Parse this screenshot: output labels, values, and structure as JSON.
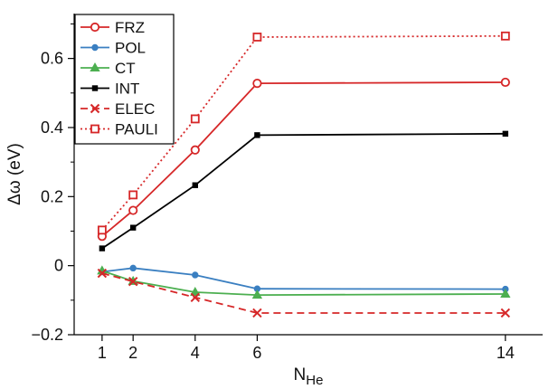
{
  "chart_data": {
    "type": "line",
    "title": "",
    "xlabel_main": "N",
    "xlabel_sub": "He",
    "ylabel": "Δω (eV)",
    "xlim": [
      0.1,
      15.2
    ],
    "ylim": [
      -0.2,
      0.73
    ],
    "xticks": [
      1,
      2,
      4,
      6,
      14
    ],
    "xtick_labels": [
      "1",
      "2",
      "4",
      "6",
      "14"
    ],
    "yticks": [
      -0.2,
      0,
      0.2,
      0.4,
      0.6
    ],
    "ytick_labels": [
      "−0.2",
      "0",
      "0.2",
      "0.4",
      "0.6"
    ],
    "x": [
      1,
      2,
      4,
      6,
      14
    ],
    "grid": false,
    "legend_position": "top-left",
    "series": [
      {
        "name": "FRZ",
        "values": [
          0.085,
          0.16,
          0.335,
          0.528,
          0.531
        ],
        "color": "#d62728",
        "marker": "open-circle",
        "line": "solid"
      },
      {
        "name": "POL",
        "values": [
          -0.018,
          -0.007,
          -0.027,
          -0.067,
          -0.068
        ],
        "color": "#3a7fc1",
        "marker": "filled-circle",
        "line": "solid"
      },
      {
        "name": "CT",
        "values": [
          -0.015,
          -0.045,
          -0.077,
          -0.085,
          -0.082
        ],
        "color": "#4caf50",
        "marker": "filled-triangle",
        "line": "solid"
      },
      {
        "name": "INT",
        "values": [
          0.05,
          0.11,
          0.233,
          0.378,
          0.382
        ],
        "color": "#000000",
        "marker": "filled-square",
        "line": "solid"
      },
      {
        "name": "ELEC",
        "values": [
          -0.022,
          -0.046,
          -0.092,
          -0.137,
          -0.137
        ],
        "color": "#d62728",
        "marker": "x",
        "line": "dashed"
      },
      {
        "name": "PAULI",
        "values": [
          0.103,
          0.205,
          0.425,
          0.662,
          0.665
        ],
        "color": "#d62728",
        "marker": "open-square",
        "line": "dotted"
      }
    ]
  }
}
